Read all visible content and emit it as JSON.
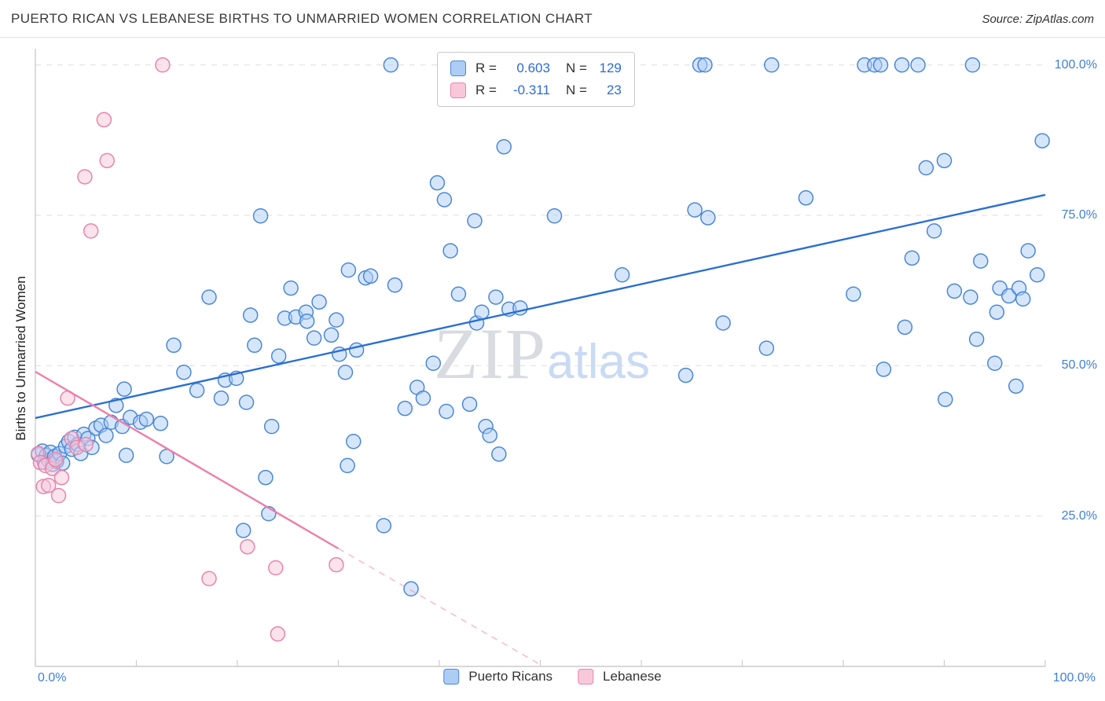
{
  "header": {
    "title": "PUERTO RICAN VS LEBANESE BIRTHS TO UNMARRIED WOMEN CORRELATION CHART",
    "source": "Source: ZipAtlas.com"
  },
  "watermark": {
    "zip": "ZIP",
    "atlas": "atlas"
  },
  "stats_legend": {
    "rows": [
      {
        "r_label": "R =",
        "r_value": "0.603",
        "n_label": "N =",
        "n_value": "129"
      },
      {
        "r_label": "R =",
        "r_value": "-0.311",
        "n_label": "N =",
        "n_value": "23"
      }
    ]
  },
  "axes": {
    "y_label": "Births to Unmarried Women",
    "y_ticks": [
      "100.0%",
      "75.0%",
      "50.0%",
      "25.0%"
    ],
    "x_min_label": "0.0%",
    "x_max_label": "100.0%"
  },
  "bottom_legend": {
    "series1": "Puerto Ricans",
    "series2": "Lebanese"
  },
  "colors": {
    "axis": "#cccccc",
    "gridline": "#dedede",
    "tick_label": "#4080d8",
    "stat_value": "#2e6bd4",
    "title": "#3a3a3a",
    "watermark_zip": "#d8dce1",
    "watermark_atlas": "#c9daf3"
  },
  "chart_data": {
    "type": "scatter",
    "title": "Puerto Rican vs Lebanese Births to Unmarried Women (%)",
    "ylabel": "Births to Unmarried Women",
    "xlim": [
      0,
      100
    ],
    "ylim": [
      0,
      102.7
    ],
    "units": "percent",
    "grid": "horizontal-dashed-25-50-75-100",
    "legend_position": "top-center",
    "series": [
      {
        "name": "Puerto Ricans",
        "R": 0.603,
        "N": 129,
        "fill_color": "#aecdf5",
        "stroke_color": "#4b87d7",
        "line_color": "#2a6fd2",
        "trend": {
          "solid": [
            0,
            41.3,
            100,
            78.4
          ]
        },
        "points": [
          [
            0.3,
            35.2
          ],
          [
            0.7,
            35.8
          ],
          [
            0.9,
            33.9
          ],
          [
            1.1,
            35.1
          ],
          [
            1.3,
            34.3
          ],
          [
            1.5,
            35.6
          ],
          [
            1.7,
            33.6
          ],
          [
            1.9,
            34.9
          ],
          [
            2.1,
            34.1
          ],
          [
            2.4,
            35.4
          ],
          [
            2.7,
            33.8
          ],
          [
            3.0,
            36.6
          ],
          [
            3.3,
            37.4
          ],
          [
            3.6,
            36.1
          ],
          [
            3.9,
            38.1
          ],
          [
            4.2,
            36.9
          ],
          [
            4.5,
            35.4
          ],
          [
            4.8,
            38.6
          ],
          [
            5.2,
            37.9
          ],
          [
            5.6,
            36.4
          ],
          [
            6.0,
            39.6
          ],
          [
            6.5,
            40.1
          ],
          [
            7.0,
            38.4
          ],
          [
            7.5,
            40.6
          ],
          [
            8.0,
            43.4
          ],
          [
            8.6,
            39.9
          ],
          [
            9.0,
            35.1
          ],
          [
            9.4,
            41.4
          ],
          [
            10.4,
            40.6
          ],
          [
            8.8,
            46.1
          ],
          [
            11.0,
            41.1
          ],
          [
            12.4,
            40.4
          ],
          [
            13.0,
            34.9
          ],
          [
            13.7,
            53.4
          ],
          [
            14.7,
            48.9
          ],
          [
            16.0,
            45.9
          ],
          [
            17.2,
            61.4
          ],
          [
            18.4,
            44.6
          ],
          [
            18.8,
            47.6
          ],
          [
            19.9,
            47.9
          ],
          [
            20.6,
            22.6
          ],
          [
            20.9,
            43.9
          ],
          [
            21.3,
            58.4
          ],
          [
            21.7,
            53.4
          ],
          [
            22.3,
            74.9
          ],
          [
            22.8,
            31.4
          ],
          [
            23.1,
            25.4
          ],
          [
            23.4,
            39.9
          ],
          [
            24.1,
            51.6
          ],
          [
            24.7,
            57.9
          ],
          [
            25.3,
            62.9
          ],
          [
            25.8,
            58.1
          ],
          [
            26.8,
            58.9
          ],
          [
            26.9,
            57.4
          ],
          [
            27.6,
            54.6
          ],
          [
            28.1,
            60.6
          ],
          [
            29.3,
            55.1
          ],
          [
            29.8,
            57.6
          ],
          [
            30.1,
            51.9
          ],
          [
            30.7,
            48.9
          ],
          [
            30.9,
            33.4
          ],
          [
            31.0,
            65.9
          ],
          [
            31.5,
            37.4
          ],
          [
            31.8,
            52.6
          ],
          [
            32.7,
            64.6
          ],
          [
            33.2,
            64.9
          ],
          [
            34.5,
            23.4
          ],
          [
            35.2,
            100.0
          ],
          [
            35.6,
            63.4
          ],
          [
            36.6,
            42.9
          ],
          [
            37.2,
            12.9
          ],
          [
            37.8,
            46.4
          ],
          [
            38.4,
            44.6
          ],
          [
            39.4,
            50.4
          ],
          [
            39.8,
            80.4
          ],
          [
            40.5,
            77.6
          ],
          [
            40.7,
            42.4
          ],
          [
            41.1,
            69.1
          ],
          [
            41.9,
            61.9
          ],
          [
            43.0,
            43.6
          ],
          [
            43.5,
            74.1
          ],
          [
            43.7,
            57.1
          ],
          [
            44.2,
            58.9
          ],
          [
            44.6,
            39.9
          ],
          [
            45.0,
            38.4
          ],
          [
            45.9,
            35.3
          ],
          [
            45.6,
            61.4
          ],
          [
            46.4,
            86.4
          ],
          [
            46.9,
            59.4
          ],
          [
            48.0,
            59.6
          ],
          [
            51.4,
            74.9
          ],
          [
            58.1,
            65.1
          ],
          [
            64.4,
            48.4
          ],
          [
            65.3,
            75.9
          ],
          [
            65.8,
            100.0
          ],
          [
            66.3,
            100.0
          ],
          [
            66.6,
            74.6
          ],
          [
            68.1,
            57.1
          ],
          [
            72.4,
            52.9
          ],
          [
            72.9,
            100.0
          ],
          [
            76.3,
            77.9
          ],
          [
            81.0,
            61.9
          ],
          [
            82.1,
            100.0
          ],
          [
            83.1,
            100.0
          ],
          [
            83.7,
            100.0
          ],
          [
            84.0,
            49.4
          ],
          [
            85.8,
            100.0
          ],
          [
            86.1,
            56.4
          ],
          [
            86.8,
            67.9
          ],
          [
            87.4,
            100.0
          ],
          [
            88.2,
            82.9
          ],
          [
            89.0,
            72.4
          ],
          [
            90.0,
            84.1
          ],
          [
            90.1,
            44.4
          ],
          [
            91.0,
            62.4
          ],
          [
            92.6,
            61.4
          ],
          [
            92.8,
            100.0
          ],
          [
            93.2,
            54.4
          ],
          [
            93.6,
            67.4
          ],
          [
            95.0,
            50.4
          ],
          [
            95.2,
            58.9
          ],
          [
            95.5,
            62.9
          ],
          [
            96.4,
            61.6
          ],
          [
            97.1,
            46.6
          ],
          [
            97.4,
            62.9
          ],
          [
            97.8,
            61.1
          ],
          [
            98.3,
            69.1
          ],
          [
            99.2,
            65.1
          ],
          [
            99.7,
            87.4
          ]
        ]
      },
      {
        "name": "Lebanese",
        "R": -0.311,
        "N": 23,
        "fill_color": "#f8c8da",
        "stroke_color": "#e884ab",
        "line_color": "#ee7ea8",
        "trend": {
          "solid": [
            0,
            49.0,
            30,
            19.6
          ],
          "dash": [
            30,
            19.6,
            50,
            0.3
          ]
        },
        "points": [
          [
            12.6,
            100.0
          ],
          [
            6.8,
            90.9
          ],
          [
            7.1,
            84.1
          ],
          [
            4.9,
            81.4
          ],
          [
            5.5,
            72.4
          ],
          [
            0.3,
            35.4
          ],
          [
            0.5,
            33.9
          ],
          [
            0.8,
            29.9
          ],
          [
            1.0,
            33.4
          ],
          [
            1.3,
            30.1
          ],
          [
            1.7,
            32.9
          ],
          [
            2.0,
            34.4
          ],
          [
            2.3,
            28.4
          ],
          [
            2.6,
            31.4
          ],
          [
            3.2,
            44.6
          ],
          [
            3.6,
            37.9
          ],
          [
            4.1,
            36.4
          ],
          [
            5.0,
            36.9
          ],
          [
            17.2,
            14.6
          ],
          [
            21.0,
            19.9
          ],
          [
            23.8,
            16.4
          ],
          [
            29.8,
            16.9
          ],
          [
            24.0,
            5.4
          ]
        ]
      }
    ]
  }
}
